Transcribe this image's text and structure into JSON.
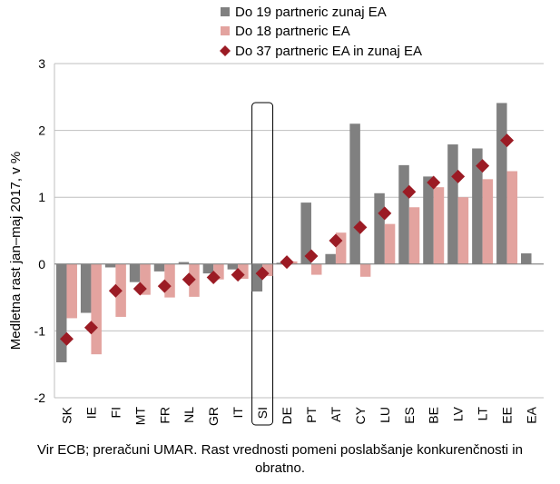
{
  "chart_data": {
    "type": "bar",
    "ylabel": "Medletna rast jan–maj 2017, v %",
    "ylim": [
      -2,
      3
    ],
    "yticks": [
      -2,
      -1,
      0,
      1,
      2,
      3
    ],
    "categories": [
      "SK",
      "IE",
      "FI",
      "MT",
      "FR",
      "NL",
      "GR",
      "IT",
      "SI",
      "DE",
      "PT",
      "AT",
      "CY",
      "LU",
      "ES",
      "BE",
      "LV",
      "LT",
      "EE",
      "EA"
    ],
    "highlight_category": "SI",
    "series": [
      {
        "name": "Do 19 partneric zunaj EA",
        "kind": "bar",
        "color": "#808080",
        "values": [
          -1.47,
          -0.73,
          -0.05,
          -0.27,
          -0.11,
          0.03,
          -0.14,
          -0.08,
          -0.41,
          0.02,
          0.92,
          0.15,
          2.1,
          1.06,
          1.48,
          1.31,
          1.79,
          1.73,
          2.41,
          0.16
        ]
      },
      {
        "name": "Do 18 partneric EA",
        "kind": "bar",
        "color": "#E3A39F",
        "values": [
          -0.81,
          -1.35,
          -0.79,
          -0.46,
          -0.5,
          -0.49,
          -0.23,
          -0.22,
          -0.18,
          0.04,
          -0.16,
          0.47,
          -0.19,
          0.6,
          0.85,
          1.15,
          1.0,
          1.27,
          1.39,
          null
        ]
      },
      {
        "name": "Do 37 partneric EA in zunaj EA",
        "kind": "marker",
        "color": "#9B1B24",
        "values": [
          -1.12,
          -0.95,
          -0.4,
          -0.37,
          -0.33,
          -0.23,
          -0.2,
          -0.16,
          -0.14,
          0.03,
          0.12,
          0.35,
          0.55,
          0.76,
          1.08,
          1.22,
          1.31,
          1.47,
          1.85,
          null
        ]
      }
    ]
  },
  "source_note": "Vir ECB; preračuni UMAR. Rast vrednosti pomeni poslabšanje konkurenčnosti in obratno."
}
